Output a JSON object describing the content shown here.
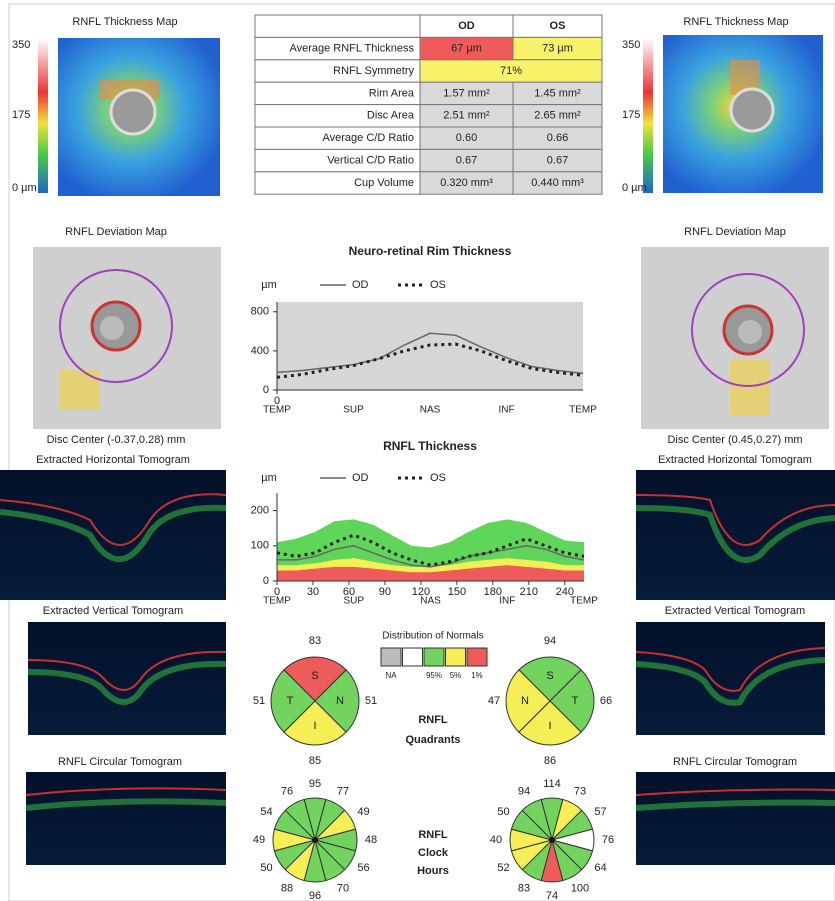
{
  "left": {
    "thickness_map_title": "RNFL Thickness Map",
    "scale": [
      "350",
      "175",
      "0 µm"
    ],
    "deviation_map_title": "RNFL Deviation Map",
    "disc_center": "Disc Center  (-0.37,0.28) mm",
    "horizontal_title": "Extracted Horizontal Tomogram",
    "vertical_title": "Extracted Vertical Tomogram",
    "circular_title": "RNFL Circular Tomogram"
  },
  "right": {
    "thickness_map_title": "RNFL Thickness Map",
    "scale": [
      "350",
      "175",
      "0 µm"
    ],
    "deviation_map_title": "RNFL Deviation Map",
    "disc_center": "Disc Center  (0.45,0.27) mm",
    "horizontal_title": "Extracted Horizontal Tomogram",
    "vertical_title": "Extracted Vertical Tomogram",
    "circular_title": "RNFL Circular Tomogram"
  },
  "table": {
    "header": [
      "OD",
      "OS"
    ],
    "rows": [
      {
        "label": "Average RNFL Thickness",
        "od": "67 µm",
        "os": "73 µm",
        "od_color": "#f05a5a",
        "os_color": "#f7f26a"
      },
      {
        "label": "RNFL Symmetry",
        "both": "71%",
        "color": "#f7f26a"
      },
      {
        "label": "Rim Area",
        "od": "1.57 mm²",
        "os": "1.45 mm²",
        "od_color": "#d9d9d9",
        "os_color": "#d9d9d9"
      },
      {
        "label": "Disc Area",
        "od": "2.51 mm²",
        "os": "2.65 mm²",
        "od_color": "#d9d9d9",
        "os_color": "#d9d9d9"
      },
      {
        "label": "Average C/D Ratio",
        "od": "0.60",
        "os": "0.66",
        "od_color": "#d9d9d9",
        "os_color": "#d9d9d9"
      },
      {
        "label": "Vertical C/D Ratio",
        "od": "0.67",
        "os": "0.67",
        "od_color": "#d9d9d9",
        "os_color": "#d9d9d9"
      },
      {
        "label": "Cup Volume",
        "od": "0.320 mm³",
        "os": "0.440 mm³",
        "od_color": "#d9d9d9",
        "os_color": "#d9d9d9"
      }
    ]
  },
  "rim_chart": {
    "type": "line",
    "title": "Neuro-retinal Rim Thickness",
    "unit": "µm",
    "xlim": [
      0,
      360
    ],
    "ylim": [
      0,
      900
    ],
    "yticks": [
      0,
      400,
      800
    ],
    "xticks": [
      0
    ],
    "region_ticks": [
      {
        "value": 0,
        "label": "TEMP"
      },
      {
        "value": 90,
        "label": "SUP"
      },
      {
        "value": 180,
        "label": "NAS"
      },
      {
        "value": 270,
        "label": "INF"
      },
      {
        "value": 360,
        "label": "TEMP"
      }
    ],
    "x": [
      0,
      30,
      60,
      90,
      120,
      150,
      180,
      210,
      240,
      270,
      300,
      330,
      360
    ],
    "series": [
      {
        "name": "OD",
        "color": "#666666",
        "dash": "none",
        "values": [
          180,
          200,
          230,
          260,
          320,
          460,
          580,
          560,
          440,
          330,
          240,
          200,
          170
        ]
      },
      {
        "name": "OS",
        "color": "#222222",
        "dash": "3 4",
        "values": [
          130,
          160,
          210,
          250,
          320,
          400,
          460,
          470,
          400,
          300,
          220,
          180,
          150
        ]
      }
    ]
  },
  "rnfl_chart": {
    "type": "line",
    "title": "RNFL Thickness",
    "unit": "µm",
    "xlim": [
      0,
      256
    ],
    "ylim": [
      0,
      250
    ],
    "yticks": [
      0,
      100,
      200
    ],
    "xticks": [
      0,
      30,
      60,
      90,
      120,
      150,
      180,
      210,
      240
    ],
    "region_ticks": [
      {
        "value": 0,
        "label": "TEMP"
      },
      {
        "value": 64,
        "label": "SUP"
      },
      {
        "value": 128,
        "label": "NAS"
      },
      {
        "value": 192,
        "label": "INF"
      },
      {
        "value": 256,
        "label": "TEMP"
      }
    ],
    "x": [
      0,
      16,
      32,
      48,
      64,
      80,
      96,
      112,
      128,
      144,
      160,
      176,
      192,
      208,
      224,
      240,
      256
    ],
    "bands": [
      {
        "color": "#5fd65a",
        "values": [
          110,
          120,
          140,
          170,
          175,
          160,
          130,
          100,
          95,
          110,
          140,
          165,
          175,
          165,
          140,
          115,
          110
        ]
      },
      {
        "color": "#f5ef55",
        "values": [
          45,
          45,
          50,
          60,
          65,
          55,
          45,
          40,
          40,
          45,
          55,
          60,
          65,
          60,
          55,
          45,
          45
        ]
      },
      {
        "color": "#ee5b5b",
        "values": [
          30,
          30,
          35,
          40,
          40,
          35,
          30,
          25,
          25,
          30,
          35,
          40,
          45,
          40,
          35,
          30,
          30
        ]
      }
    ],
    "series": [
      {
        "name": "OD",
        "color": "#666666",
        "dash": "none",
        "values": [
          60,
          60,
          70,
          90,
          100,
          80,
          60,
          45,
          40,
          50,
          70,
          80,
          90,
          100,
          90,
          70,
          60
        ]
      },
      {
        "name": "OS",
        "color": "#222222",
        "dash": "3 4",
        "values": [
          80,
          70,
          80,
          110,
          130,
          110,
          80,
          60,
          45,
          55,
          70,
          80,
          100,
          120,
          100,
          80,
          70
        ]
      }
    ]
  },
  "normals": {
    "title": "Distribution of Normals",
    "colors": [
      "#bbbbbb",
      "#ffffff",
      "#72d35f",
      "#f5ef55",
      "#ee5b5b"
    ],
    "labels": [
      {
        "box": 0,
        "label": "NA"
      },
      {
        "box": 2,
        "label": "95%"
      },
      {
        "box": 3,
        "label": "5%"
      },
      {
        "box": 4,
        "label": "1%"
      }
    ]
  },
  "quadrants": {
    "title": [
      "RNFL",
      "Quadrants"
    ],
    "od": [
      {
        "label": "S",
        "value": 83,
        "color": "#ee5b5b"
      },
      {
        "label": "N",
        "value": 51,
        "color": "#72d35f"
      },
      {
        "label": "I",
        "value": 85,
        "color": "#f5ef55"
      },
      {
        "label": "T",
        "value": 51,
        "color": "#72d35f"
      }
    ],
    "os": [
      {
        "label": "S",
        "value": 94,
        "color": "#72d35f"
      },
      {
        "label": "T",
        "value": 66,
        "color": "#72d35f"
      },
      {
        "label": "I",
        "value": 86,
        "color": "#f5ef55"
      },
      {
        "label": "N",
        "value": 47,
        "color": "#f5ef55"
      }
    ]
  },
  "clock": {
    "title": [
      "RNFL",
      "Clock",
      "Hours"
    ],
    "od": [
      {
        "value": 95,
        "color": "#72d35f"
      },
      {
        "value": 77,
        "color": "#72d35f"
      },
      {
        "value": 49,
        "color": "#f5ef55"
      },
      {
        "value": 48,
        "color": "#72d35f"
      },
      {
        "value": 56,
        "color": "#72d35f"
      },
      {
        "value": 70,
        "color": "#72d35f"
      },
      {
        "value": 96,
        "color": "#72d35f"
      },
      {
        "value": 88,
        "color": "#f5ef55"
      },
      {
        "value": 50,
        "color": "#72d35f"
      },
      {
        "value": 49,
        "color": "#f5ef55"
      },
      {
        "value": 54,
        "color": "#72d35f"
      },
      {
        "value": 76,
        "color": "#72d35f"
      }
    ],
    "os": [
      {
        "value": 114,
        "color": "#72d35f"
      },
      {
        "value": 73,
        "color": "#f5ef55"
      },
      {
        "value": 57,
        "color": "#72d35f"
      },
      {
        "value": 76,
        "color": "#ffffff"
      },
      {
        "value": 64,
        "color": "#72d35f"
      },
      {
        "value": 100,
        "color": "#72d35f"
      },
      {
        "value": 74,
        "color": "#ee5b5b"
      },
      {
        "value": 83,
        "color": "#72d35f"
      },
      {
        "value": 52,
        "color": "#f5ef55"
      },
      {
        "value": 40,
        "color": "#f5ef55"
      },
      {
        "value": 50,
        "color": "#72d35f"
      },
      {
        "value": 94,
        "color": "#72d35f"
      }
    ]
  }
}
